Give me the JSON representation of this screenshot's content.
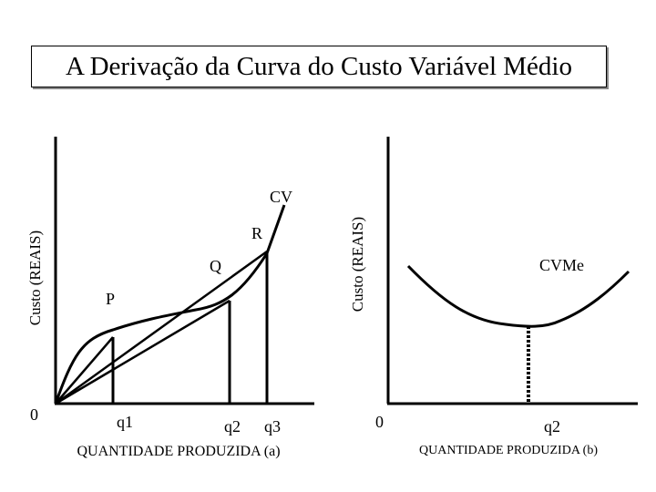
{
  "title": "A Derivação da Curva do Custo Variável Médio",
  "left_panel": {
    "ylabel": "Custo (REAIS)",
    "xlabel": "QUANTIDADE PRODUZIDA (a)",
    "origin": "0",
    "curve_label": "CV",
    "points": {
      "p": "P",
      "q": "Q",
      "r": "R"
    },
    "ticks": {
      "q1": "q1",
      "q2": "q2",
      "q3": "q3"
    }
  },
  "right_panel": {
    "ylabel": "Custo (REAIS)",
    "xlabel": "QUANTIDADE PRODUZIDA (b)",
    "origin": "0",
    "curve_label": "CVMe",
    "ticks": {
      "q2": "q2"
    }
  },
  "colors": {
    "ink": "#000000",
    "background": "#ffffff"
  }
}
